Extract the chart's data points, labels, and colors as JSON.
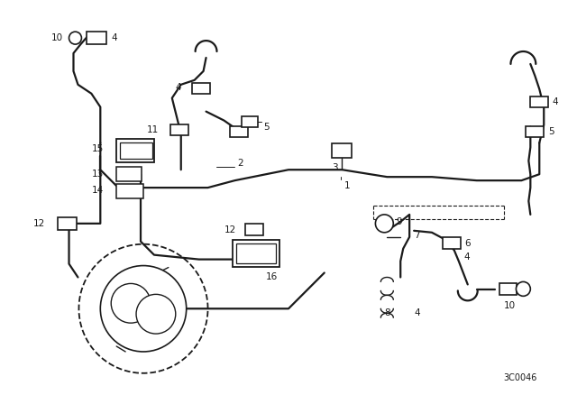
{
  "bg_color": "#ffffff",
  "line_color": "#1a1a1a",
  "part_number": "3C0046",
  "fig_w": 6.4,
  "fig_h": 4.48,
  "dpi": 100
}
